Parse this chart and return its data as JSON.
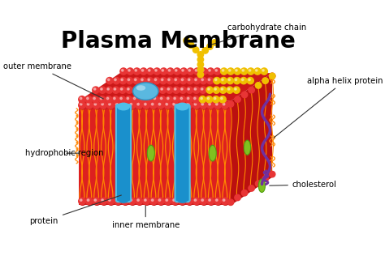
{
  "title": "Plasma Membrane",
  "title_fontsize": 20,
  "title_fontweight": "bold",
  "bg_color": "#ffffff",
  "labels": {
    "outer_membrane": "outer membrane",
    "inner_membrane": "inner membrane",
    "carbohydrate_chain": "carbohydrate chain",
    "alpha_helix_protein": "alpha helix protein",
    "hydrophobic_region": "hydrophobic region",
    "cholesterol": "cholesterol",
    "protein": "protein"
  },
  "colors": {
    "red_head": "#e83535",
    "red_head_shadow": "#c01a1a",
    "orange_tail": "#ff8800",
    "blue_protein": "#1a90cc",
    "blue_protein_light": "#50c0e8",
    "blue_dome": "#5ab8e0",
    "green_protein": "#80c020",
    "yellow_carbo": "#f0c000",
    "purple_helix": "#7030a0",
    "membrane_top": "#cc1818",
    "membrane_front": "#dd2020",
    "membrane_right": "#bb1010"
  }
}
